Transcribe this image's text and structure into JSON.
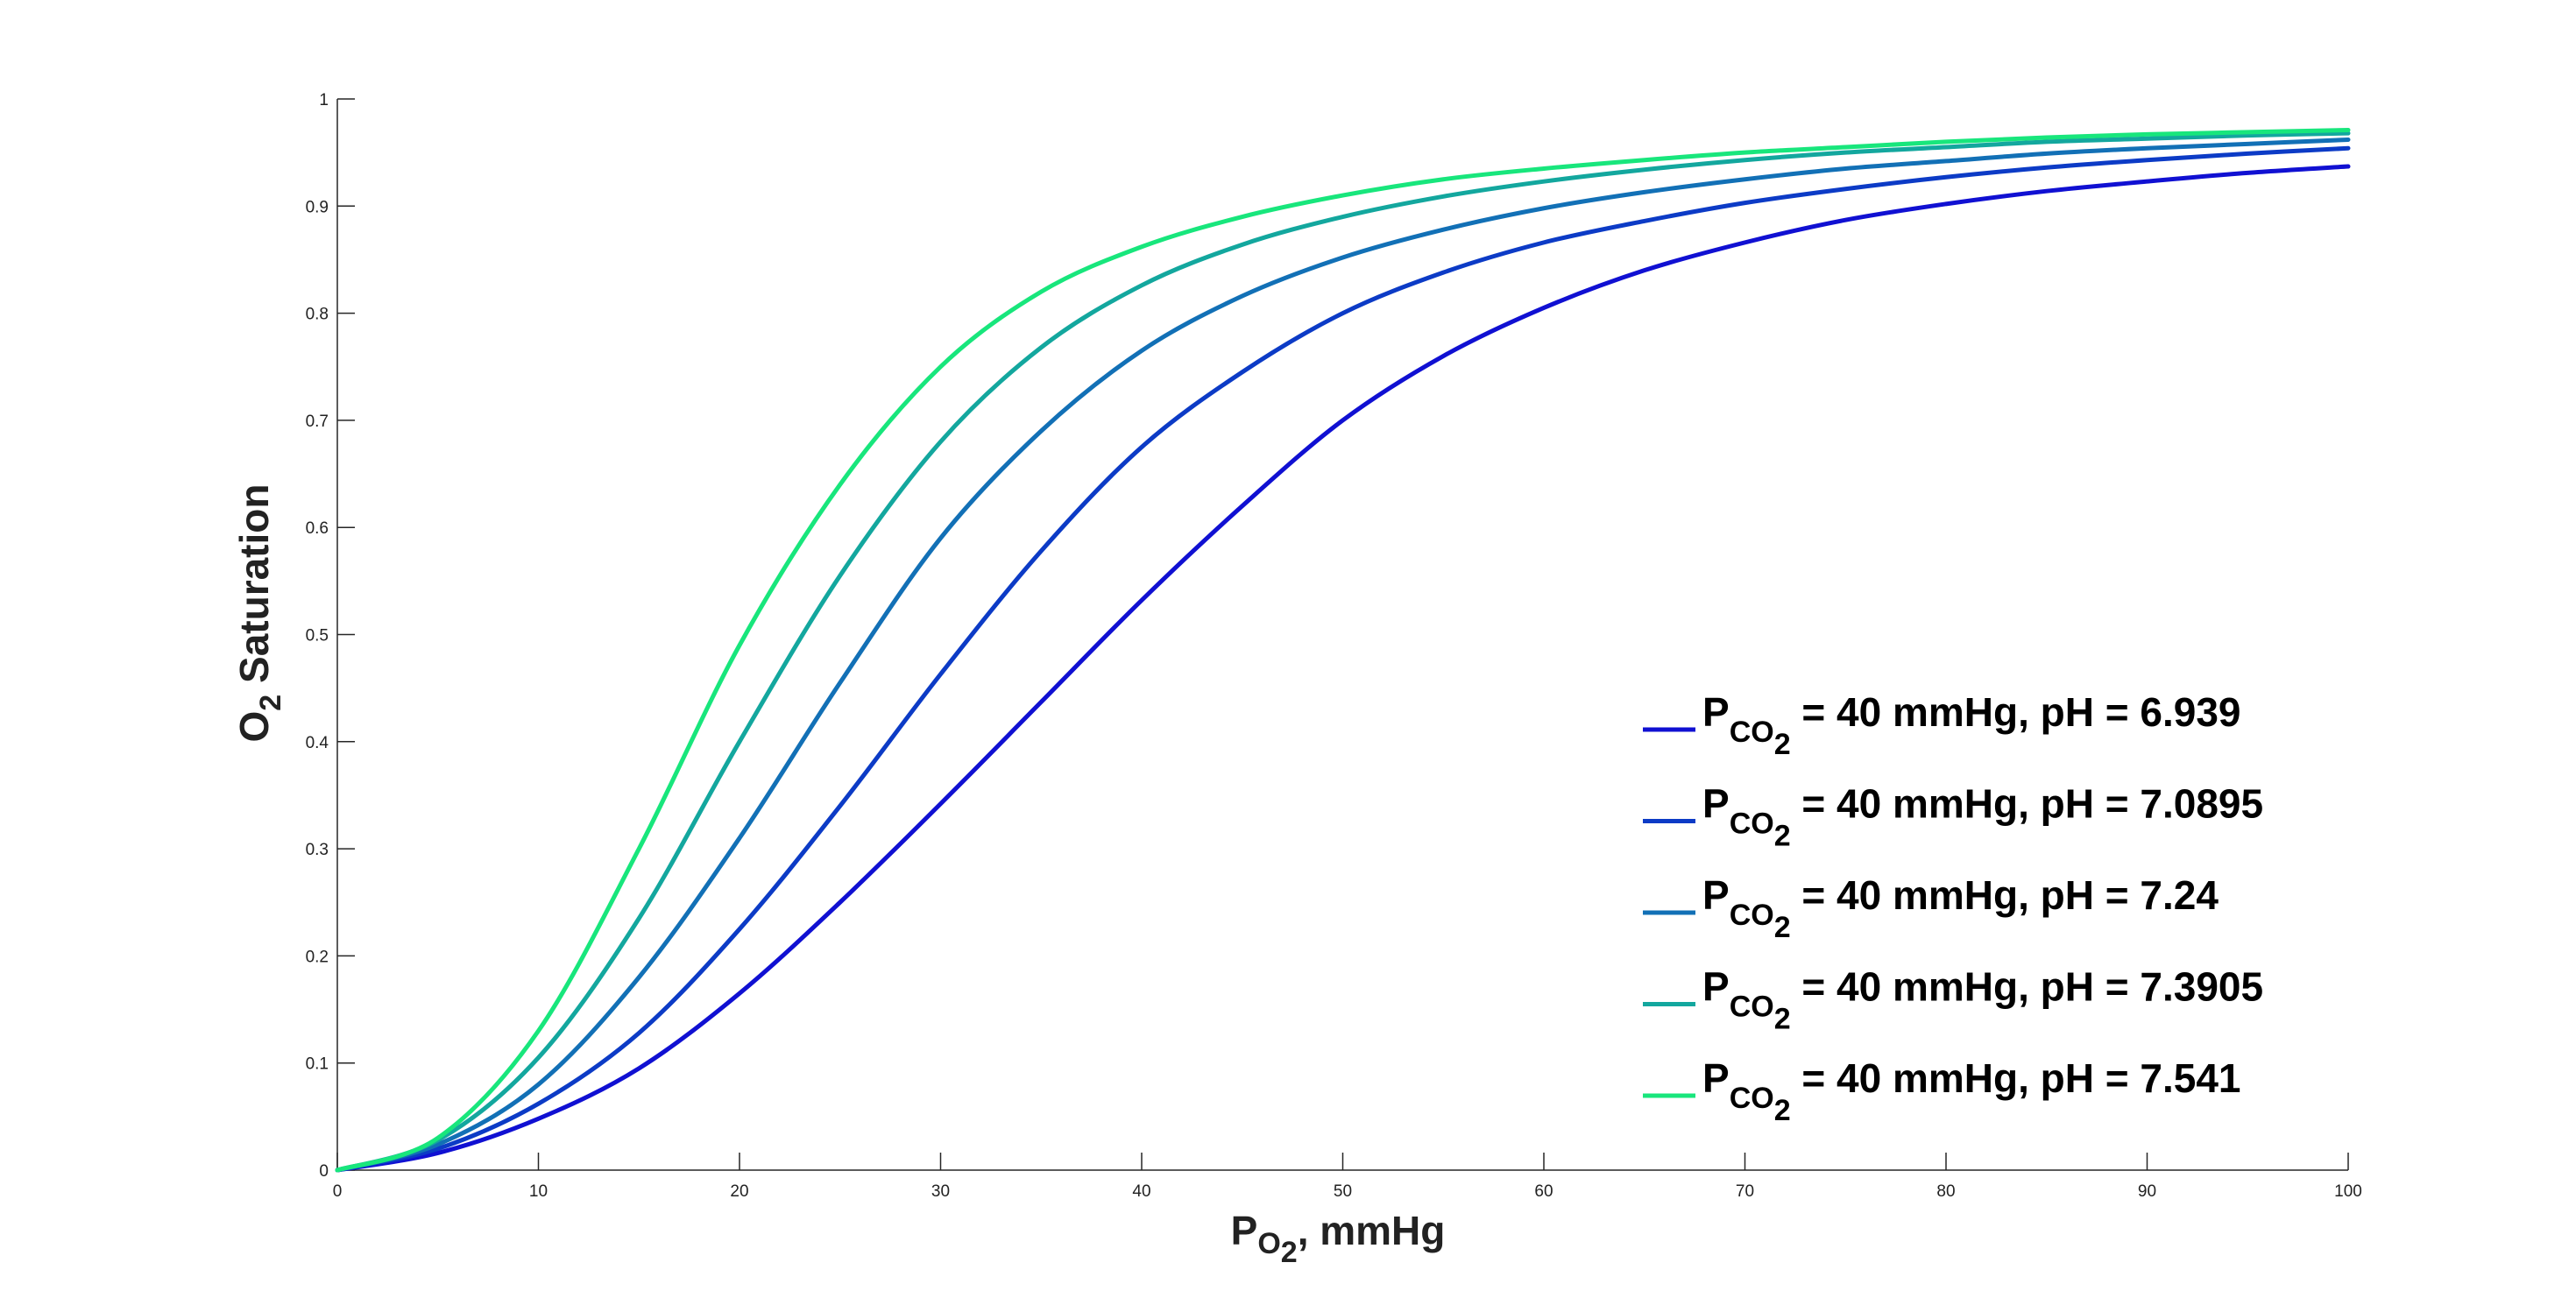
{
  "chart_data": {
    "type": "line",
    "xlabel": {
      "main": "P",
      "sub": "O",
      "subsub": "2",
      "rest": ", mmHg"
    },
    "ylabel": {
      "main": "O",
      "sub": "2",
      "rest": " Saturation"
    },
    "xlim": [
      0,
      100
    ],
    "ylim": [
      0,
      1
    ],
    "xticks": [
      0,
      10,
      20,
      30,
      40,
      50,
      60,
      70,
      80,
      90,
      100
    ],
    "xtick_labels": [
      "0",
      "10",
      "20",
      "30",
      "40",
      "50",
      "60",
      "70",
      "80",
      "90",
      "100"
    ],
    "yticks": [
      0,
      0.1,
      0.2,
      0.3,
      0.4,
      0.5,
      0.6,
      0.7,
      0.8,
      0.9,
      1
    ],
    "ytick_labels": [
      "0",
      "0.1",
      "0.2",
      "0.3",
      "0.4",
      "0.5",
      "0.6",
      "0.7",
      "0.8",
      "0.9",
      "1"
    ],
    "grid": false,
    "legend_position": "bottom-right",
    "series": [
      {
        "legend_main": "P",
        "legend_sub": "CO",
        "legend_subsub": "2",
        "legend_rest": " = 40 mmHg, pH = 6.939",
        "color": "#1010d2",
        "x": [
          0,
          5,
          10,
          15,
          20,
          25,
          30,
          35,
          40,
          45,
          50,
          55,
          60,
          65,
          70,
          75,
          80,
          85,
          90,
          95,
          100
        ],
        "y": [
          0,
          0.016,
          0.048,
          0.095,
          0.165,
          0.25,
          0.342,
          0.437,
          0.532,
          0.62,
          0.7,
          0.76,
          0.805,
          0.84,
          0.866,
          0.887,
          0.902,
          0.914,
          0.923,
          0.931,
          0.937
        ]
      },
      {
        "legend_main": "P",
        "legend_sub": "CO",
        "legend_subsub": "2",
        "legend_rest": " = 40 mmHg, pH = 7.0895",
        "color": "#0c3bc6",
        "x": [
          0,
          5,
          10,
          15,
          20,
          25,
          30,
          35,
          40,
          45,
          50,
          55,
          60,
          65,
          70,
          75,
          80,
          85,
          90,
          95,
          100
        ],
        "y": [
          0,
          0.02,
          0.062,
          0.128,
          0.225,
          0.34,
          0.463,
          0.578,
          0.675,
          0.745,
          0.8,
          0.838,
          0.866,
          0.886,
          0.903,
          0.916,
          0.927,
          0.936,
          0.943,
          0.949,
          0.954
        ]
      },
      {
        "legend_main": "P",
        "legend_sub": "CO",
        "legend_subsub": "2",
        "legend_rest": " = 40 mmHg, pH = 7.24",
        "color": "#1270b6",
        "x": [
          0,
          5,
          10,
          15,
          20,
          25,
          30,
          35,
          40,
          45,
          50,
          55,
          60,
          65,
          70,
          75,
          80,
          85,
          90,
          95,
          100
        ],
        "y": [
          0,
          0.024,
          0.08,
          0.18,
          0.31,
          0.455,
          0.59,
          0.69,
          0.765,
          0.816,
          0.852,
          0.878,
          0.898,
          0.913,
          0.925,
          0.935,
          0.942,
          0.949,
          0.954,
          0.958,
          0.962
        ]
      },
      {
        "legend_main": "P",
        "legend_sub": "CO",
        "legend_subsub": "2",
        "legend_rest": " = 40 mmHg, pH = 7.3905",
        "color": "#13a79e",
        "x": [
          0,
          5,
          10,
          15,
          20,
          25,
          30,
          35,
          40,
          45,
          50,
          55,
          60,
          65,
          70,
          75,
          80,
          85,
          90,
          95,
          100
        ],
        "y": [
          0,
          0.028,
          0.105,
          0.235,
          0.4,
          0.555,
          0.68,
          0.768,
          0.826,
          0.864,
          0.89,
          0.909,
          0.923,
          0.934,
          0.943,
          0.95,
          0.955,
          0.96,
          0.963,
          0.966,
          0.968
        ]
      },
      {
        "legend_main": "P",
        "legend_sub": "CO",
        "legend_subsub": "2",
        "legend_rest": " = 40 mmHg, pH = 7.541",
        "color": "#18e67c",
        "x": [
          0,
          5,
          10,
          15,
          20,
          25,
          30,
          35,
          40,
          45,
          50,
          55,
          60,
          65,
          70,
          75,
          80,
          85,
          90,
          95,
          100
        ],
        "y": [
          0,
          0.03,
          0.13,
          0.3,
          0.49,
          0.64,
          0.75,
          0.82,
          0.862,
          0.89,
          0.91,
          0.925,
          0.935,
          0.943,
          0.95,
          0.955,
          0.96,
          0.964,
          0.967,
          0.969,
          0.971
        ]
      }
    ]
  }
}
